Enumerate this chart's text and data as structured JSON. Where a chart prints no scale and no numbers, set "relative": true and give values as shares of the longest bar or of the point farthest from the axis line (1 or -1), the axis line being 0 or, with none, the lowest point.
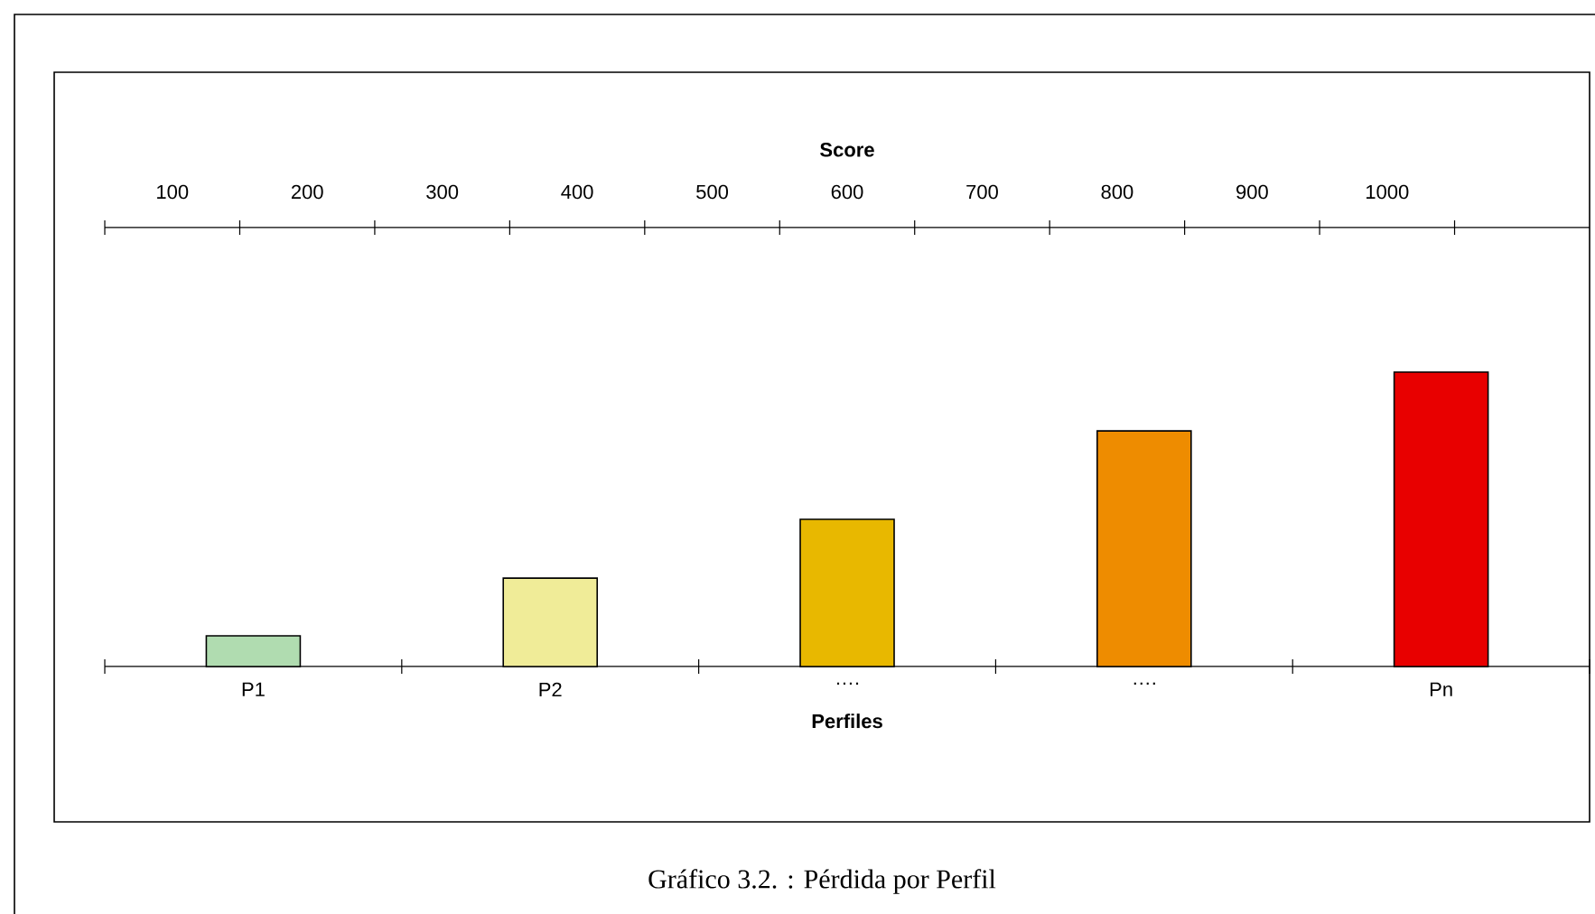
{
  "chart_data": {
    "type": "bar",
    "relative": true,
    "categories": [
      "P1",
      "P2",
      "….",
      "….",
      "Pn"
    ],
    "values": [
      0.104,
      0.3,
      0.5,
      0.8,
      1.0
    ],
    "colors": [
      "#b0dcb0",
      "#f0ec98",
      "#e8b800",
      "#ee8c00",
      "#e80000"
    ],
    "xlabel": "Perfiles",
    "x2label": "Score",
    "x2lim": [
      50,
      1150
    ],
    "x2ticks": [
      100,
      200,
      300,
      400,
      500,
      600,
      700,
      800,
      900,
      1000
    ],
    "annotations": [
      "Gráfico 3.2. : Pérdida por Perfil"
    ]
  }
}
